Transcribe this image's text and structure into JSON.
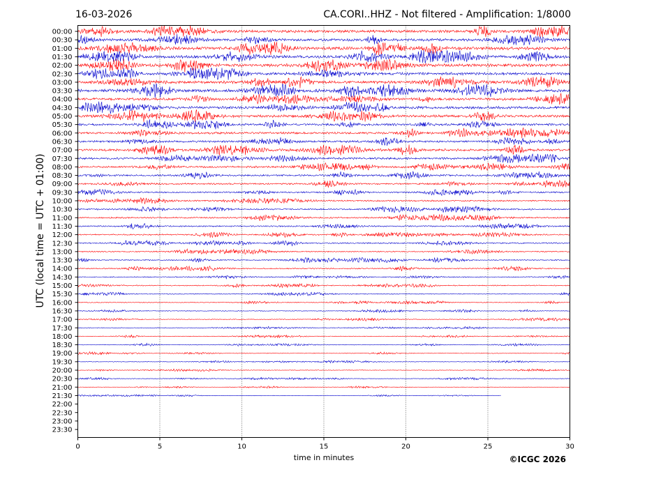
{
  "chart_data": {
    "type": "line",
    "title_left": "16-03-2026",
    "title_right": "CA.CORI..HHZ - Not filtered - Amplification: 1/8000",
    "xlabel": "time in minutes",
    "ylabel": "UTC (local time = UTC + 01:00)",
    "x_ticks": [
      0,
      5,
      10,
      15,
      20,
      25,
      30
    ],
    "xlim": [
      0,
      30
    ],
    "vertical_grid": "dotted, every 5 minutes",
    "row_labels": [
      "00:00",
      "00:30",
      "01:00",
      "01:30",
      "02:00",
      "02:30",
      "03:00",
      "03:30",
      "04:00",
      "04:30",
      "05:00",
      "05:30",
      "06:00",
      "06:30",
      "07:00",
      "07:30",
      "08:00",
      "08:30",
      "09:00",
      "09:30",
      "10:00",
      "10:30",
      "11:00",
      "11:30",
      "12:00",
      "12:30",
      "13:00",
      "13:30",
      "14:00",
      "14:30",
      "15:00",
      "15:30",
      "16:00",
      "16:30",
      "17:00",
      "17:30",
      "18:00",
      "18:30",
      "19:00",
      "19:30",
      "20:00",
      "20:30",
      "21:00",
      "21:30",
      "22:00",
      "22:30",
      "23:00",
      "23:30"
    ],
    "trace_colors": [
      "#ff0000",
      "#0000cc"
    ],
    "traces_recorded_rows": 44,
    "last_trace_end_minutes": 25.8,
    "relative_amplitude_by_row": [
      0.85,
      0.8,
      1.0,
      0.9,
      0.95,
      0.85,
      0.9,
      0.95,
      0.8,
      0.85,
      0.85,
      0.7,
      0.7,
      0.65,
      0.75,
      0.65,
      0.6,
      0.55,
      0.5,
      0.45,
      0.45,
      0.45,
      0.45,
      0.4,
      0.4,
      0.4,
      0.35,
      0.35,
      0.35,
      0.3,
      0.3,
      0.25,
      0.25,
      0.22,
      0.22,
      0.2,
      0.2,
      0.2,
      0.2,
      0.18,
      0.18,
      0.18,
      0.15,
      0.15
    ]
  },
  "watermark": "©ICGC 2026"
}
